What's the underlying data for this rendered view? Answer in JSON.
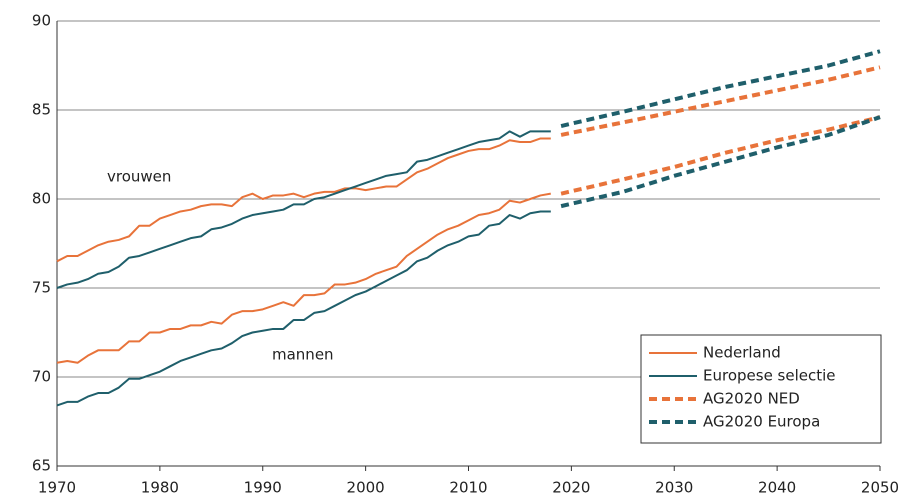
{
  "chart_data": {
    "type": "line",
    "annotations": [
      "vrouwen",
      "mannen"
    ],
    "xlim": [
      1970,
      2050
    ],
    "xticks": [
      1970,
      1980,
      1990,
      2000,
      2010,
      2020,
      2030,
      2040,
      2050
    ],
    "ylim": [
      65,
      90
    ],
    "yticks": [
      65,
      70,
      75,
      80,
      85,
      90
    ],
    "grid": true,
    "legend": "lower right",
    "series": [
      {
        "name": "Nederland",
        "color": "#e8733a",
        "dashed": false,
        "x": [
          1970,
          1971,
          1972,
          1973,
          1974,
          1975,
          1976,
          1977,
          1978,
          1979,
          1980,
          1981,
          1982,
          1983,
          1984,
          1985,
          1986,
          1987,
          1988,
          1989,
          1990,
          1991,
          1992,
          1993,
          1994,
          1995,
          1996,
          1997,
          1998,
          1999,
          2000,
          2001,
          2002,
          2003,
          2004,
          2005,
          2006,
          2007,
          2008,
          2009,
          2010,
          2011,
          2012,
          2013,
          2014,
          2015,
          2016,
          2017,
          2018
        ],
        "values": [
          [
            76.5,
            76.8,
            76.8,
            77.1,
            77.4,
            77.6,
            77.7,
            77.9,
            78.5,
            78.5,
            78.9,
            79.1,
            79.3,
            79.4,
            79.6,
            79.7,
            79.7,
            79.6,
            80.1,
            80.3,
            80.0,
            80.2,
            80.2,
            80.3,
            80.1,
            80.3,
            80.4,
            80.4,
            80.6,
            80.6,
            80.5,
            80.6,
            80.7,
            80.7,
            81.1,
            81.5,
            81.7,
            82.0,
            82.3,
            82.5,
            82.7,
            82.8,
            82.8,
            83.0,
            83.3,
            83.2,
            83.2,
            83.4,
            83.4
          ],
          [
            70.8,
            70.9,
            70.8,
            71.2,
            71.5,
            71.5,
            71.5,
            72.0,
            72.0,
            72.5,
            72.5,
            72.7,
            72.7,
            72.9,
            72.9,
            73.1,
            73.0,
            73.5,
            73.7,
            73.7,
            73.8,
            74.0,
            74.2,
            74.0,
            74.6,
            74.6,
            74.7,
            75.2,
            75.2,
            75.3,
            75.5,
            75.8,
            76.0,
            76.2,
            76.8,
            77.2,
            77.6,
            78.0,
            78.3,
            78.5,
            78.8,
            79.1,
            79.2,
            79.4,
            79.9,
            79.8,
            80.0,
            80.2,
            80.3
          ]
        ]
      },
      {
        "name": "Europese selectie",
        "color": "#1f5f6b",
        "dashed": false,
        "x": [
          1970,
          1971,
          1972,
          1973,
          1974,
          1975,
          1976,
          1977,
          1978,
          1979,
          1980,
          1981,
          1982,
          1983,
          1984,
          1985,
          1986,
          1987,
          1988,
          1989,
          1990,
          1991,
          1992,
          1993,
          1994,
          1995,
          1996,
          1997,
          1998,
          1999,
          2000,
          2001,
          2002,
          2003,
          2004,
          2005,
          2006,
          2007,
          2008,
          2009,
          2010,
          2011,
          2012,
          2013,
          2014,
          2015,
          2016,
          2017,
          2018
        ],
        "values": [
          [
            75.0,
            75.2,
            75.3,
            75.5,
            75.8,
            75.9,
            76.2,
            76.7,
            76.8,
            77.0,
            77.2,
            77.4,
            77.6,
            77.8,
            77.9,
            78.3,
            78.4,
            78.6,
            78.9,
            79.1,
            79.2,
            79.3,
            79.4,
            79.7,
            79.7,
            80.0,
            80.1,
            80.3,
            80.5,
            80.7,
            80.9,
            81.1,
            81.3,
            81.4,
            81.5,
            82.1,
            82.2,
            82.4,
            82.6,
            82.8,
            83.0,
            83.2,
            83.3,
            83.4,
            83.8,
            83.5,
            83.8,
            83.8,
            83.8
          ],
          [
            68.4,
            68.6,
            68.6,
            68.9,
            69.1,
            69.1,
            69.4,
            69.9,
            69.9,
            70.1,
            70.3,
            70.6,
            70.9,
            71.1,
            71.3,
            71.5,
            71.6,
            71.9,
            72.3,
            72.5,
            72.6,
            72.7,
            72.7,
            73.2,
            73.2,
            73.6,
            73.7,
            74.0,
            74.3,
            74.6,
            74.8,
            75.1,
            75.4,
            75.7,
            76.0,
            76.5,
            76.7,
            77.1,
            77.4,
            77.6,
            77.9,
            78.0,
            78.5,
            78.6,
            79.1,
            78.9,
            79.2,
            79.3,
            79.3
          ]
        ]
      },
      {
        "name": "AG2020 NED",
        "color": "#e8733a",
        "dashed": true,
        "x": [
          2019,
          2025,
          2030,
          2035,
          2040,
          2045,
          2050
        ],
        "values": [
          [
            83.6,
            84.3,
            84.9,
            85.5,
            86.1,
            86.7,
            87.4
          ],
          [
            80.3,
            81.1,
            81.8,
            82.6,
            83.3,
            83.9,
            84.6
          ]
        ]
      },
      {
        "name": "AG2020 Europa",
        "color": "#1f5f6b",
        "dashed": true,
        "x": [
          2019,
          2025,
          2030,
          2035,
          2040,
          2045,
          2050
        ],
        "values": [
          [
            84.1,
            84.9,
            85.6,
            86.3,
            86.9,
            87.5,
            88.3
          ],
          [
            79.6,
            80.4,
            81.3,
            82.1,
            82.9,
            83.6,
            84.6
          ]
        ]
      }
    ]
  }
}
